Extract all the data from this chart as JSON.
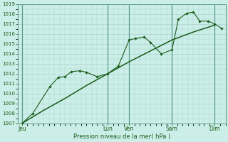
{
  "xlabel": "Pression niveau de la mer( hPa )",
  "bg_color": "#cceee8",
  "grid_color": "#aad4cc",
  "line_color": "#1a5c1a",
  "vline_color": "#5a9a8a",
  "ylim": [
    1007,
    1019
  ],
  "yticks": [
    1007,
    1008,
    1009,
    1010,
    1011,
    1012,
    1013,
    1014,
    1015,
    1016,
    1017,
    1018,
    1019
  ],
  "xtick_labels": [
    "Jeu",
    "",
    "",
    "",
    "Lun",
    "Ven",
    "",
    "Sam",
    "",
    "Dim"
  ],
  "xtick_positions": [
    0,
    1,
    2,
    3,
    4,
    5,
    6,
    7,
    8,
    9
  ],
  "xtick_show": [
    "Jeu",
    "Lun",
    "Ven",
    "Sam",
    "Dim"
  ],
  "xtick_show_pos": [
    0,
    4,
    5,
    7,
    9
  ],
  "smooth_line_x": [
    0,
    1,
    2,
    3,
    4,
    5,
    6,
    7,
    8,
    9
  ],
  "smooth_line_y": [
    1007.0,
    1008.3,
    1009.5,
    1010.8,
    1012.0,
    1013.2,
    1014.3,
    1015.4,
    1016.2,
    1016.9
  ],
  "jagged_line_x": [
    0,
    0.5,
    1.3,
    1.7,
    2.0,
    2.3,
    2.7,
    3.0,
    3.5,
    4.0,
    4.5,
    5.0,
    5.3,
    5.7,
    6.0,
    6.5,
    7.0,
    7.3,
    7.7,
    8.0,
    8.3,
    8.7,
    9.0,
    9.3
  ],
  "jagged_line_y": [
    1007.0,
    1008.0,
    1010.7,
    1011.65,
    1011.7,
    1012.2,
    1012.3,
    1012.15,
    1011.7,
    1012.0,
    1012.8,
    1015.4,
    1015.55,
    1015.7,
    1015.15,
    1014.0,
    1014.4,
    1017.5,
    1018.1,
    1018.2,
    1017.3,
    1017.3,
    1017.0,
    1016.6
  ],
  "vline_positions": [
    0,
    4,
    5,
    7,
    9
  ],
  "figsize": [
    3.2,
    2.0
  ],
  "dpi": 100
}
